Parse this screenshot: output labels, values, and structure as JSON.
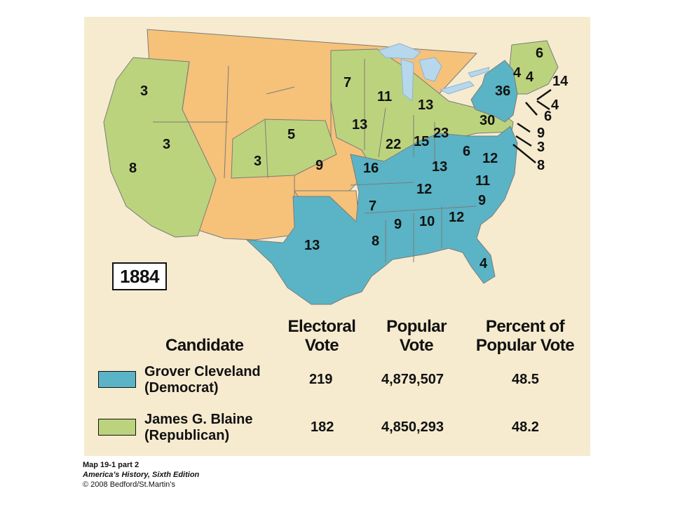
{
  "map": {
    "year": "1884",
    "colors": {
      "democrat": "#5ab4c5",
      "republican": "#bcd37d",
      "territory": "#f6c179",
      "background": "#f6ebcf",
      "water": "#b7d7ec"
    },
    "state_labels": [
      "3",
      "3",
      "8",
      "3",
      "5",
      "9",
      "7",
      "11",
      "13",
      "13",
      "22",
      "15",
      "16",
      "13",
      "12",
      "7",
      "8",
      "9",
      "10",
      "12",
      "13",
      "4",
      "6",
      "12",
      "11",
      "9",
      "23",
      "30",
      "36",
      "4",
      "4",
      "6",
      "14",
      "4",
      "6",
      "9",
      "3",
      "8"
    ]
  },
  "table": {
    "headers": {
      "candidate": "Candidate",
      "electoral_1": "Electoral",
      "electoral_2": "Vote",
      "popular_1": "Popular",
      "popular_2": "Vote",
      "percent_1": "Percent of",
      "percent_2": "Popular Vote"
    },
    "rows": [
      {
        "name": "Grover Cleveland",
        "party": "(Democrat)",
        "electoral": "219",
        "popular": "4,879,507",
        "percent": "48.5",
        "color": "#5ab4c5"
      },
      {
        "name": "James G. Blaine",
        "party": "(Republican)",
        "electoral": "182",
        "popular": "4,850,293",
        "percent": "48.2",
        "color": "#bcd37d"
      }
    ]
  },
  "credit": {
    "line1": "Map 19-1 part 2",
    "line2": "America’s History, Sixth Edition",
    "line3": "© 2008 Bedford/St.Martin’s"
  }
}
